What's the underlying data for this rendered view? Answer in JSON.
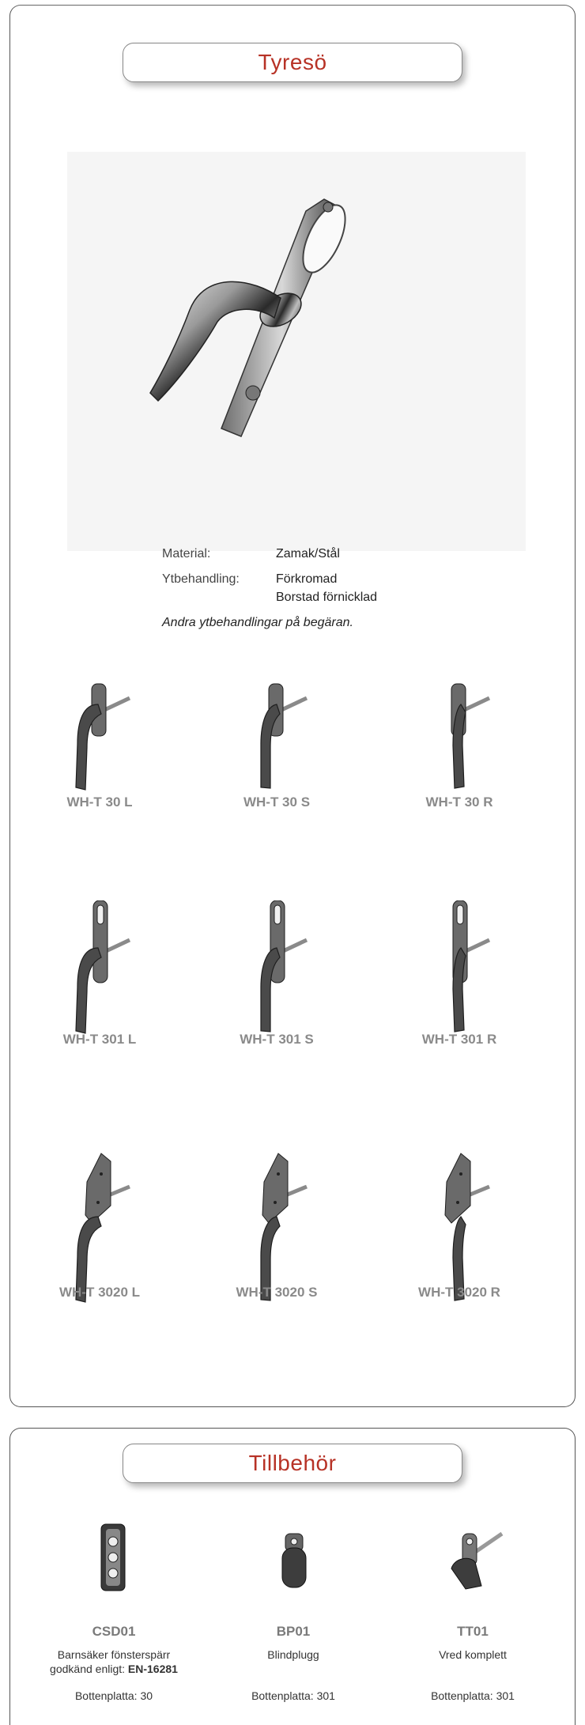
{
  "section1": {
    "title": "Tyresö",
    "specs": {
      "material_label": "Material:",
      "material_value": "Zamak/Stål",
      "finish_label": "Ytbehandling:",
      "finish_value_1": "Förkromad",
      "finish_value_2": "Borstad förnicklad",
      "note": "Andra ytbehandlingar på begäran."
    },
    "variants": [
      {
        "code": "WH-T 30 L",
        "plate": "short"
      },
      {
        "code": "WH-T 30 S",
        "plate": "short"
      },
      {
        "code": "WH-T 30 R",
        "plate": "short"
      },
      {
        "code": "WH-T 301 L",
        "plate": "long"
      },
      {
        "code": "WH-T 301 S",
        "plate": "long"
      },
      {
        "code": "WH-T 301 R",
        "plate": "long"
      },
      {
        "code": "WH-T 3020 L",
        "plate": "wide"
      },
      {
        "code": "WH-T 3020 S",
        "plate": "wide"
      },
      {
        "code": "WH-T 3020 R",
        "plate": "wide"
      }
    ]
  },
  "section2": {
    "title": "Tillbehör",
    "items": [
      {
        "code": "CSD01",
        "desc_1": "Barnsäker fönsterspärr",
        "desc_2_prefix": "godkänd enligt: ",
        "desc_2_std": "EN-16281",
        "plate": "Bottenplatta: 30"
      },
      {
        "code": "BP01",
        "desc_1": "Blindplugg",
        "plate": "Bottenplatta: 301"
      },
      {
        "code": "TT01",
        "desc_1": "Vred komplett",
        "plate": "Bottenplatta: 301"
      }
    ]
  },
  "colors": {
    "title_red": "#b73226",
    "code_gray": "#8a8a8a",
    "handle_dark": "#555555"
  }
}
